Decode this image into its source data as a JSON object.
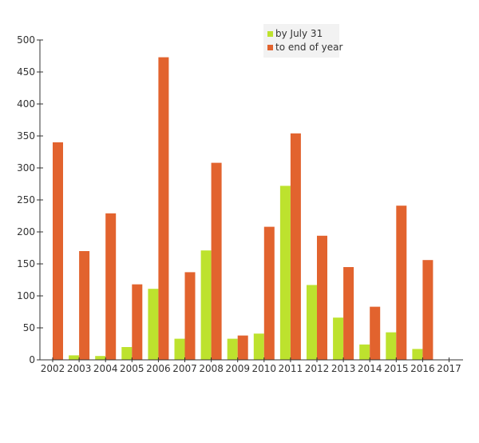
{
  "chart_data": {
    "type": "bar",
    "title": "",
    "xlabel": "",
    "ylabel": "",
    "categories": [
      "2002",
      "2003",
      "2004",
      "2005",
      "2006",
      "2007",
      "2008",
      "2009",
      "2010",
      "2011",
      "2012",
      "2013",
      "2014",
      "2015",
      "2016",
      "2017"
    ],
    "series": [
      {
        "name": "by July 31",
        "color": "#bde22e",
        "values": [
          0,
          7,
          6,
          20,
          111,
          33,
          171,
          33,
          41,
          272,
          117,
          66,
          24,
          43,
          17,
          0
        ]
      },
      {
        "name": "to end of year",
        "color": "#e2632e",
        "values": [
          340,
          170,
          229,
          118,
          473,
          137,
          308,
          38,
          208,
          354,
          194,
          145,
          83,
          241,
          156,
          0
        ]
      }
    ],
    "ylim": [
      0,
      500
    ],
    "yticks": [
      0,
      50,
      100,
      150,
      200,
      250,
      300,
      350,
      400,
      450,
      500
    ],
    "grid": false,
    "legend_position": "top-right"
  }
}
